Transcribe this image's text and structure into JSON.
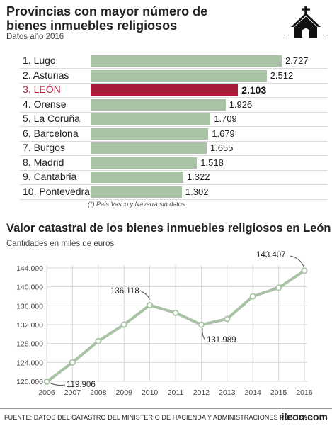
{
  "header": {
    "title": "Provincias con mayor número de bienes inmuebles religiosos",
    "subtitle": "Datos año 2016",
    "icon": "church-icon"
  },
  "ranking": {
    "rows": [
      {
        "label": "1. Lugo",
        "value": 2727,
        "value_text": "2.727",
        "highlight": false
      },
      {
        "label": "2. Asturias",
        "value": 2512,
        "value_text": "2.512",
        "highlight": false
      },
      {
        "label": "3. LEÓN",
        "value": 2103,
        "value_text": "2.103",
        "highlight": true
      },
      {
        "label": "4. Orense",
        "value": 1926,
        "value_text": "1.926",
        "highlight": false
      },
      {
        "label": "5. La Coruña",
        "value": 1709,
        "value_text": "1.709",
        "highlight": false
      },
      {
        "label": "6. Barcelona",
        "value": 1679,
        "value_text": "1.679",
        "highlight": false
      },
      {
        "label": "7. Burgos",
        "value": 1655,
        "value_text": "1.655",
        "highlight": false
      },
      {
        "label": "8. Madrid",
        "value": 1518,
        "value_text": "1.518",
        "highlight": false
      },
      {
        "label": "9. Cantabria",
        "value": 1322,
        "value_text": "1.322",
        "highlight": false
      },
      {
        "label": "10. Pontevedra",
        "value": 1302,
        "value_text": "1.302",
        "highlight": false
      }
    ],
    "note": "(*) País Vasco y Navarra sin datos"
  },
  "line_section": {
    "title": "Valor catastral de los bienes inmuebles religiosos en León",
    "subtitle": "Cantidades en miles de euros"
  },
  "footer": {
    "source": "FUENTE: DATOS DEL CATASTRO DEL MINISTERIO DE HACIENDA Y ADMINISTRACIONES PÚBLICAS",
    "brand": "ileon.com"
  },
  "colors": {
    "bar": "#a9c2a6",
    "highlight_bar": "#a81c3a",
    "highlight_text": "#b01f39",
    "line": "#a9c2a6",
    "grid": "#d8d8d8"
  },
  "chart_data": [
    {
      "type": "bar",
      "orientation": "horizontal",
      "title": "Provincias con mayor número de bienes inmuebles religiosos",
      "subtitle": "Datos año 2016",
      "categories": [
        "Lugo",
        "Asturias",
        "LEÓN",
        "Orense",
        "La Coruña",
        "Barcelona",
        "Burgos",
        "Madrid",
        "Cantabria",
        "Pontevedra"
      ],
      "values": [
        2727,
        2512,
        2103,
        1926,
        1709,
        1679,
        1655,
        1518,
        1322,
        1302
      ],
      "highlight": "LEÓN",
      "grid": false
    },
    {
      "type": "line",
      "title": "Valor catastral de los bienes inmuebles religiosos en León",
      "subtitle": "Cantidades en miles de euros",
      "x": [
        2006,
        2007,
        2008,
        2009,
        2010,
        2011,
        2012,
        2013,
        2014,
        2015,
        2016
      ],
      "x_ticks": [
        "2006",
        "2007",
        "2008",
        "2009",
        "2010",
        "2011",
        "2012",
        "2013",
        "2014",
        "2015",
        "2016"
      ],
      "series": [
        {
          "values": [
            119906,
            124000,
            128500,
            132000,
            136118,
            134500,
            131989,
            133200,
            138000,
            139800,
            143407
          ]
        }
      ],
      "annotations": [
        {
          "x": 2006,
          "y": 119906,
          "text": "119.906"
        },
        {
          "x": 2010,
          "y": 136118,
          "text": "136.118"
        },
        {
          "x": 2012,
          "y": 131989,
          "text": "131.989"
        },
        {
          "x": 2016,
          "y": 143407,
          "text": "143.407"
        }
      ],
      "ylim": [
        120000,
        144000
      ],
      "y_ticks": [
        {
          "value": 120000,
          "label": "120.000"
        },
        {
          "value": 124000,
          "label": "124.000"
        },
        {
          "value": 128000,
          "label": "128.000"
        },
        {
          "value": 132000,
          "label": "132.000"
        },
        {
          "value": 136000,
          "label": "136.000"
        },
        {
          "value": 140000,
          "label": "140.000"
        },
        {
          "value": 144000,
          "label": "144.000"
        }
      ],
      "grid": true
    }
  ]
}
